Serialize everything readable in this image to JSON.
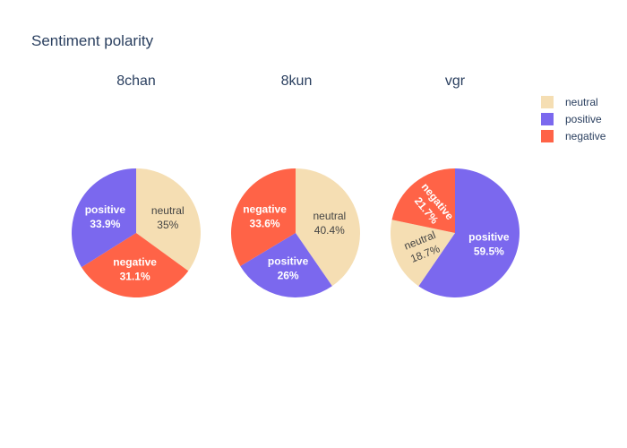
{
  "chart_data": {
    "type": "pie",
    "title": "Sentiment polarity",
    "legend": {
      "placement": "top-right",
      "entries": [
        {
          "label": "neutral",
          "color": "#f5deb3"
        },
        {
          "label": "positive",
          "color": "#7b68ee"
        },
        {
          "label": "negative",
          "color": "#ff6347"
        }
      ]
    },
    "pies": [
      {
        "title": "8chan",
        "slices": [
          {
            "label": "neutral",
            "value": 35.0,
            "text": "35%",
            "color": "#f5deb3"
          },
          {
            "label": "negative",
            "value": 31.1,
            "text": "31.1%",
            "color": "#ff6347"
          },
          {
            "label": "positive",
            "value": 33.9,
            "text": "33.9%",
            "color": "#7b68ee"
          }
        ]
      },
      {
        "title": "8kun",
        "slices": [
          {
            "label": "neutral",
            "value": 40.4,
            "text": "40.4%",
            "color": "#f5deb3"
          },
          {
            "label": "positive",
            "value": 26.0,
            "text": "26%",
            "color": "#7b68ee"
          },
          {
            "label": "negative",
            "value": 33.6,
            "text": "33.6%",
            "color": "#ff6347"
          }
        ]
      },
      {
        "title": "vgr",
        "slices": [
          {
            "label": "positive",
            "value": 59.5,
            "text": "59.5%",
            "color": "#7b68ee"
          },
          {
            "label": "neutral",
            "value": 18.7,
            "text": "18.7%",
            "color": "#f5deb3"
          },
          {
            "label": "negative",
            "value": 21.7,
            "text": "21.7%",
            "color": "#ff6347"
          }
        ]
      }
    ]
  }
}
